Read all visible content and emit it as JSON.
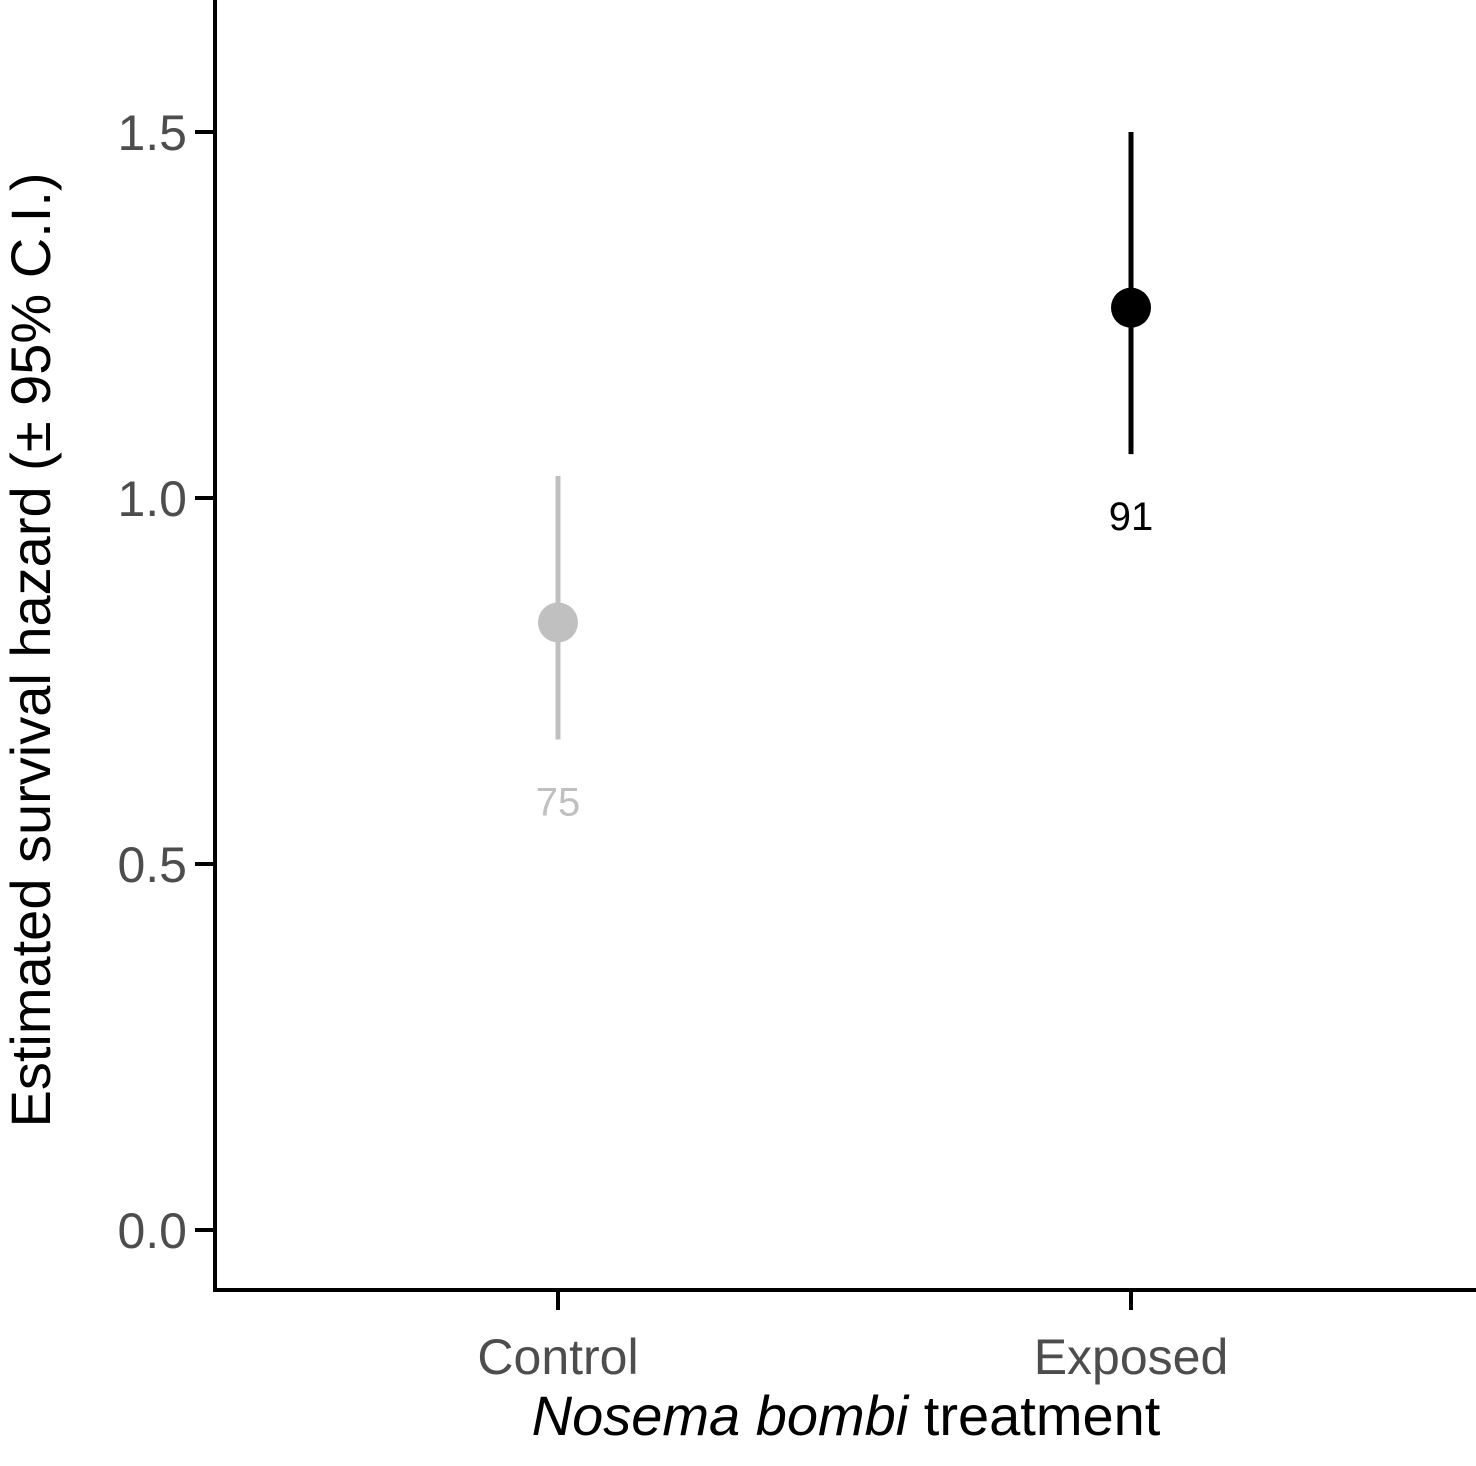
{
  "chart_data": {
    "type": "scatter",
    "title": "",
    "xlabel_italic": "Nosema bombi",
    "xlabel_rest": " treatment",
    "ylabel": "Estimated survival hazard (± 95% C.I.)",
    "ylim": [
      -0.08,
      1.68
    ],
    "yticks": [
      0.0,
      0.5,
      1.0,
      1.5
    ],
    "ytick_labels": [
      "0.0",
      "0.5",
      "1.0",
      "1.5"
    ],
    "grid": false,
    "categories": [
      "Control",
      "Exposed"
    ],
    "points": [
      {
        "category": "Control",
        "estimate": 0.83,
        "ci_low": 0.67,
        "ci_high": 1.03,
        "n_label": "75",
        "color": "#c0c0c0"
      },
      {
        "category": "Exposed",
        "estimate": 1.26,
        "ci_low": 1.06,
        "ci_high": 1.5,
        "n_label": "91",
        "color": "#000000"
      }
    ],
    "colors": {
      "axis": "#000000",
      "tick_text": "#4d4d4d"
    }
  }
}
